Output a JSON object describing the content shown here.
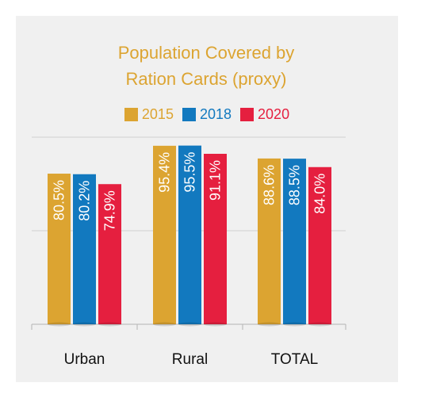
{
  "chart_data": {
    "type": "bar",
    "title_lines": [
      "Population Covered by",
      "Ration Cards (proxy)"
    ],
    "categories": [
      "Urban",
      "Rural",
      "TOTAL"
    ],
    "series": [
      {
        "name": "2015",
        "color": "#dca431",
        "values": [
          80.5,
          95.4,
          88.6
        ]
      },
      {
        "name": "2018",
        "color": "#1279bf",
        "values": [
          80.2,
          95.5,
          88.5
        ]
      },
      {
        "name": "2020",
        "color": "#e51f3f",
        "values": [
          74.9,
          91.1,
          84.0
        ]
      }
    ],
    "value_labels": [
      [
        "80.5%",
        "95.4%",
        "88.6%"
      ],
      [
        "80.2%",
        "95.5%",
        "88.5%"
      ],
      [
        "74.9%",
        "91.1%",
        "84.0%"
      ]
    ],
    "ylim": [
      0,
      100
    ],
    "grid": true,
    "legend_position": "top"
  }
}
